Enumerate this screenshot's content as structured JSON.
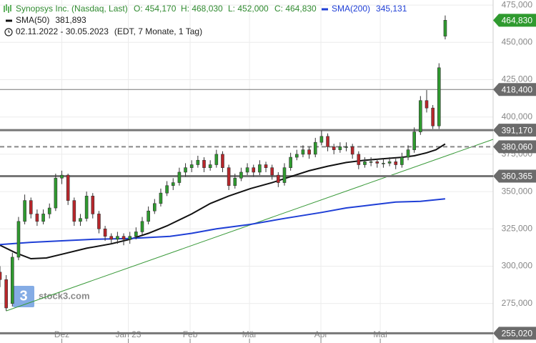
{
  "chart_data": {
    "type": "candlestick",
    "title": "Synopsys Inc. (Nasdaq, Last)",
    "ohlc_labels": [
      "O: 454,170",
      "H: 468,030",
      "L: 452,000",
      "C: 464,830"
    ],
    "date_range": "02.11.2022 - 30.05.2023",
    "range_note": "(EDT, 7 Monate, 1 Tag)",
    "watermark": "stock3.com",
    "xlim": [
      0,
      159.5
    ],
    "ylim": [
      248.5,
      478.4
    ],
    "grid": true,
    "xticks": [
      {
        "value": 20,
        "label": "Dez"
      },
      {
        "value": 41.5,
        "label": "Jan 23"
      },
      {
        "value": 61.5,
        "label": "Feb"
      },
      {
        "value": 80.7,
        "label": "Mär"
      },
      {
        "value": 103.8,
        "label": "Apr"
      },
      {
        "value": 123,
        "label": "Mai"
      }
    ],
    "yticks": [
      {
        "value": 275,
        "label": "275,000"
      },
      {
        "value": 300,
        "label": "300,000"
      },
      {
        "value": 325,
        "label": "325,000"
      },
      {
        "value": 350,
        "label": "350,000"
      },
      {
        "value": 375,
        "label": "375,000"
      },
      {
        "value": 400,
        "label": "400,000"
      },
      {
        "value": 425,
        "label": "425,000"
      },
      {
        "value": 450,
        "label": "450,000"
      },
      {
        "value": 475,
        "label": "475,000"
      }
    ],
    "candles": {
      "up_color": "#2f9a2f",
      "down_color": "#b8262b",
      "x": [
        0,
        2,
        4,
        6,
        8,
        10,
        12,
        14,
        16,
        18,
        20,
        22,
        24,
        26,
        28,
        30,
        32,
        34,
        36,
        38,
        40,
        42,
        44,
        46,
        48,
        50,
        52,
        54,
        56,
        58,
        60,
        62,
        64,
        66,
        68,
        70,
        72,
        74,
        76,
        78,
        80,
        82,
        84,
        86,
        88,
        90,
        92,
        94,
        96,
        98,
        100,
        102,
        104,
        106,
        108,
        110,
        112,
        114,
        116,
        118,
        120,
        122,
        124,
        126,
        128,
        130,
        132,
        134,
        136,
        138,
        140,
        142,
        144
      ],
      "open": [
        296,
        291,
        275,
        306,
        330,
        344,
        335,
        330,
        335,
        339,
        359,
        361,
        344,
        330,
        332,
        347,
        335,
        325,
        320,
        318,
        320,
        318,
        320,
        323,
        330,
        337,
        342,
        349,
        354,
        356,
        363,
        366,
        368,
        371,
        366,
        368,
        375,
        366,
        354,
        359,
        363,
        366,
        363,
        368,
        366,
        361,
        356,
        366,
        373,
        375,
        378,
        375,
        383,
        387,
        380,
        378,
        380,
        380,
        375,
        368,
        370,
        370,
        369,
        369,
        370,
        368,
        373,
        378,
        390,
        411,
        406,
        394,
        454.17
      ],
      "high": [
        300,
        294,
        309,
        333,
        348,
        346,
        338,
        338,
        342,
        362,
        364,
        362,
        346,
        335,
        350,
        349,
        337,
        327,
        322,
        323,
        322,
        323,
        326,
        333,
        340,
        345,
        352,
        357,
        359,
        366,
        369,
        371,
        374,
        373,
        371,
        378,
        377,
        368,
        362,
        366,
        369,
        368,
        371,
        370,
        368,
        363,
        369,
        376,
        378,
        381,
        380,
        386,
        391,
        389,
        382,
        383,
        383,
        382,
        377,
        373,
        373,
        372,
        372,
        373,
        372,
        376,
        381,
        393,
        414,
        418,
        408,
        436,
        468.03
      ],
      "low": [
        286,
        270,
        273,
        304,
        328,
        332,
        327,
        328,
        332,
        337,
        355,
        341,
        327,
        327,
        330,
        332,
        322,
        317,
        315,
        315,
        314,
        315,
        318,
        321,
        328,
        335,
        340,
        347,
        351,
        354,
        360,
        363,
        366,
        363,
        364,
        366,
        363,
        351,
        352,
        357,
        361,
        360,
        361,
        363,
        358,
        353,
        354,
        364,
        371,
        373,
        372,
        373,
        381,
        377,
        375,
        376,
        377,
        372,
        365,
        366,
        367,
        366,
        366,
        367,
        365,
        366,
        371,
        376,
        388,
        403,
        392,
        392,
        452
      ],
      "close": [
        291,
        272,
        306,
        330,
        344,
        335,
        330,
        335,
        339,
        359,
        361,
        344,
        330,
        332,
        347,
        335,
        325,
        320,
        318,
        320,
        318,
        320,
        323,
        330,
        337,
        342,
        349,
        354,
        356,
        363,
        366,
        368,
        371,
        366,
        368,
        375,
        366,
        354,
        359,
        363,
        366,
        363,
        368,
        366,
        361,
        356,
        366,
        373,
        375,
        378,
        375,
        383,
        387,
        380,
        378,
        380,
        380,
        375,
        368,
        370,
        370,
        369,
        369,
        370,
        368,
        373,
        378,
        390,
        411,
        406,
        394,
        433,
        464.83
      ]
    },
    "series": [
      {
        "name": "SMA(50)",
        "color": "#111111",
        "last_label": "381,893",
        "x": [
          0,
          5,
          10,
          15,
          20,
          28,
          36,
          42,
          48,
          54,
          62,
          68,
          74,
          81,
          88,
          94,
          100,
          106,
          112,
          118,
          124,
          130,
          134,
          138,
          141,
          144
        ],
        "values": [
          314,
          309,
          305,
          305.5,
          308,
          312,
          315,
          318,
          322,
          327,
          335,
          342,
          347,
          352,
          356,
          360,
          364,
          367,
          369.5,
          371,
          372,
          373,
          374,
          376,
          378,
          381.893
        ]
      },
      {
        "name": "SMA(200)",
        "color": "#1f3fd6",
        "last_label": "345,131",
        "x": [
          0,
          10,
          20,
          30,
          42,
          55,
          62,
          70,
          81,
          92,
          104,
          112,
          120,
          128,
          136,
          144
        ],
        "values": [
          314.5,
          316,
          317,
          318,
          318.5,
          320,
          322,
          325,
          328,
          332,
          336,
          339,
          341,
          343,
          343.5,
          345.131
        ]
      }
    ],
    "trendline": {
      "color": "#3a9a3a",
      "x": [
        2,
        159.5
      ],
      "values": [
        270,
        385
      ]
    },
    "levels": [
      {
        "value": 418.4,
        "label": "418,400",
        "style": "thin"
      },
      {
        "value": 391.17,
        "label": "391,170",
        "style": "thick"
      },
      {
        "value": 380.06,
        "label": "380,060",
        "style": "dashed"
      },
      {
        "value": 360.365,
        "label": "360,365",
        "style": "thick"
      },
      {
        "value": 255.02,
        "label": "255,020",
        "style": "thick"
      }
    ],
    "last_price": {
      "value": 464.83,
      "label": "464,830",
      "color": "#2f9a2f"
    }
  }
}
